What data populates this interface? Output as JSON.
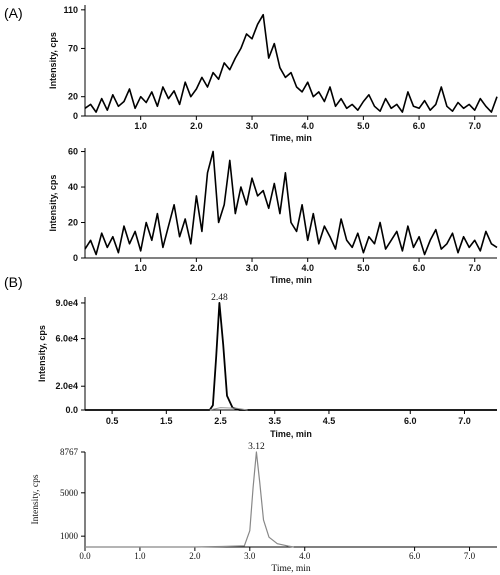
{
  "panel_labels": {
    "a": "(A)",
    "b": "(B)"
  },
  "chart_data": [
    {
      "type": "line",
      "panel": "(A)",
      "xlabel": "Time, min",
      "ylabel": "Intensity, cps",
      "xlim": [
        0.0,
        7.4
      ],
      "ylim": [
        0,
        115
      ],
      "xticks": [
        1.0,
        2.0,
        3.0,
        4.0,
        5.0,
        6.0,
        7.0
      ],
      "xtick_labels": [
        "1.0",
        "2.0",
        "3.0",
        "4.0",
        "5.0",
        "6.0",
        "7.0"
      ],
      "yticks": [
        0,
        20,
        70,
        110
      ],
      "ytick_labels": [
        "0",
        "20",
        "70",
        "110"
      ],
      "series": [
        {
          "color": "#000000",
          "x": [
            0.0,
            0.1,
            0.2,
            0.3,
            0.4,
            0.5,
            0.6,
            0.7,
            0.8,
            0.9,
            1.0,
            1.1,
            1.2,
            1.3,
            1.4,
            1.5,
            1.6,
            1.7,
            1.8,
            1.9,
            2.0,
            2.1,
            2.2,
            2.3,
            2.4,
            2.5,
            2.6,
            2.7,
            2.8,
            2.9,
            3.0,
            3.1,
            3.2,
            3.3,
            3.4,
            3.5,
            3.6,
            3.7,
            3.8,
            3.9,
            4.0,
            4.1,
            4.2,
            4.3,
            4.4,
            4.5,
            4.6,
            4.7,
            4.8,
            4.9,
            5.0,
            5.1,
            5.2,
            5.3,
            5.4,
            5.5,
            5.6,
            5.7,
            5.8,
            5.9,
            6.0,
            6.1,
            6.2,
            6.3,
            6.4,
            6.5,
            6.6,
            6.7,
            6.8,
            6.9,
            7.0,
            7.1,
            7.2,
            7.3,
            7.4
          ],
          "y": [
            8,
            12,
            4,
            18,
            6,
            22,
            10,
            15,
            28,
            8,
            20,
            14,
            25,
            10,
            30,
            18,
            26,
            12,
            35,
            20,
            28,
            40,
            30,
            45,
            38,
            55,
            48,
            60,
            70,
            85,
            80,
            95,
            105,
            60,
            75,
            50,
            40,
            45,
            30,
            25,
            35,
            20,
            25,
            15,
            30,
            10,
            18,
            8,
            12,
            6,
            15,
            22,
            10,
            5,
            18,
            8,
            12,
            4,
            25,
            10,
            8,
            16,
            6,
            12,
            30,
            10,
            5,
            14,
            8,
            12,
            6,
            18,
            10,
            4,
            20
          ]
        }
      ]
    },
    {
      "type": "line",
      "xlabel": "Time, min",
      "ylabel": "Intensity, cps",
      "xlim": [
        0.0,
        7.4
      ],
      "ylim": [
        0,
        62
      ],
      "xticks": [
        1.0,
        2.0,
        3.0,
        4.0,
        5.0,
        6.0,
        7.0
      ],
      "xtick_labels": [
        "1.0",
        "2.0",
        "3.0",
        "4.0",
        "5.0",
        "6.0",
        "7.0"
      ],
      "yticks": [
        0,
        20,
        40,
        60
      ],
      "ytick_labels": [
        "0",
        "20",
        "40",
        "60"
      ],
      "series": [
        {
          "color": "#000000",
          "x": [
            0.0,
            0.1,
            0.2,
            0.3,
            0.4,
            0.5,
            0.6,
            0.7,
            0.8,
            0.9,
            1.0,
            1.1,
            1.2,
            1.3,
            1.4,
            1.5,
            1.6,
            1.7,
            1.8,
            1.9,
            2.0,
            2.1,
            2.2,
            2.3,
            2.4,
            2.5,
            2.6,
            2.7,
            2.8,
            2.9,
            3.0,
            3.1,
            3.2,
            3.3,
            3.4,
            3.5,
            3.6,
            3.7,
            3.8,
            3.9,
            4.0,
            4.1,
            4.2,
            4.3,
            4.4,
            4.5,
            4.6,
            4.7,
            4.8,
            4.9,
            5.0,
            5.1,
            5.2,
            5.3,
            5.4,
            5.5,
            5.6,
            5.7,
            5.8,
            5.9,
            6.0,
            6.1,
            6.2,
            6.3,
            6.4,
            6.5,
            6.6,
            6.7,
            6.8,
            6.9,
            7.0,
            7.1,
            7.2,
            7.3,
            7.4
          ],
          "y": [
            5,
            10,
            2,
            14,
            6,
            12,
            3,
            18,
            8,
            15,
            4,
            20,
            10,
            25,
            6,
            18,
            30,
            12,
            22,
            8,
            35,
            15,
            48,
            60,
            20,
            30,
            55,
            25,
            40,
            30,
            45,
            35,
            38,
            28,
            42,
            25,
            48,
            20,
            15,
            30,
            10,
            25,
            8,
            18,
            12,
            5,
            22,
            10,
            6,
            14,
            3,
            12,
            8,
            20,
            5,
            10,
            15,
            4,
            18,
            6,
            12,
            2,
            10,
            16,
            5,
            8,
            14,
            3,
            12,
            6,
            10,
            4,
            15,
            8,
            6
          ]
        }
      ]
    },
    {
      "type": "line",
      "panel": "(B)",
      "xlabel": "Time, min",
      "ylabel": "Intensity, cps",
      "xlim": [
        0.0,
        7.6
      ],
      "ylim": [
        0,
        95000
      ],
      "xticks": [
        0.5,
        1.5,
        2.5,
        3.5,
        4.5,
        6.0,
        7.0
      ],
      "xtick_labels": [
        "0.5",
        "1.5",
        "2.5",
        "3.5",
        "4.5",
        "6.0",
        "7.0"
      ],
      "yticks": [
        0,
        20000,
        60000,
        90000
      ],
      "ytick_labels": [
        "0.0",
        "2.0e4",
        "6.0e4",
        "9.0e4"
      ],
      "peak_label": "2.48",
      "peak_x": 2.48,
      "series": [
        {
          "color": "#000000",
          "x": [
            0.0,
            2.3,
            2.36,
            2.42,
            2.48,
            2.55,
            2.62,
            2.72,
            2.85,
            7.6
          ],
          "y": [
            0,
            0,
            4000,
            45000,
            90000,
            55000,
            12000,
            2000,
            0,
            0
          ]
        },
        {
          "color": "#9a9a9a",
          "x": [
            2.3,
            2.5,
            2.8,
            3.0
          ],
          "y": [
            0,
            2000,
            1500,
            0
          ]
        }
      ]
    },
    {
      "type": "line",
      "xlabel": "Time, min",
      "ylabel": "Intensity, cps",
      "xlim": [
        0.0,
        7.5
      ],
      "ylim": [
        0,
        8767
      ],
      "xticks": [
        0.0,
        1.0,
        2.0,
        3.0,
        4.0,
        6.0,
        7.0
      ],
      "xtick_labels": [
        "0.0",
        "1.0",
        "2.0",
        "3.0",
        "4.0",
        "6.0",
        "7.0"
      ],
      "yticks": [
        1000,
        5000,
        8767
      ],
      "ytick_labels": [
        "1000",
        "5000",
        "8767"
      ],
      "peak_label": "3.12",
      "peak_x": 3.12,
      "series": [
        {
          "color": "#888888",
          "x": [
            0.0,
            2.0,
            2.5,
            2.9,
            3.0,
            3.06,
            3.12,
            3.18,
            3.25,
            3.35,
            3.5,
            3.7,
            3.8
          ],
          "y": [
            0,
            0,
            50,
            100,
            1500,
            5500,
            8767,
            6000,
            2500,
            900,
            300,
            80,
            0
          ]
        }
      ]
    }
  ]
}
